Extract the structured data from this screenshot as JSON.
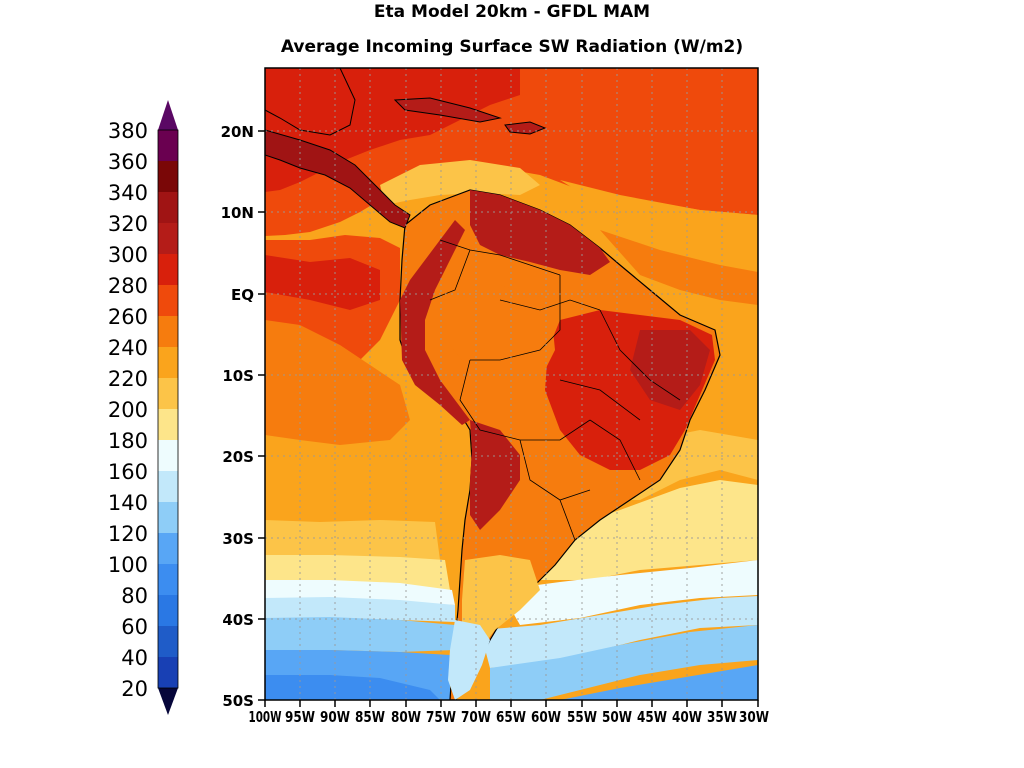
{
  "title": {
    "line1": "Eta Model 20km - GFDL MAM",
    "line2": "Average Incoming Surface SW Radiation (W/m2)"
  },
  "colorbar": {
    "levels": [
      20,
      40,
      60,
      80,
      100,
      120,
      140,
      160,
      180,
      200,
      220,
      240,
      260,
      280,
      300,
      320,
      340,
      360,
      380
    ],
    "colors": [
      "#0a1a55",
      "#0e2a8e",
      "#1840b4",
      "#1f5cc8",
      "#2a78e4",
      "#3c8df0",
      "#58a6f5",
      "#8ecdf7",
      "#c2e8fa",
      "#eefcfe",
      "#fde58a",
      "#fcc448",
      "#faa41c",
      "#f67c0e",
      "#ef4a0c",
      "#d8200c",
      "#b41c18",
      "#a01414",
      "#7a0707",
      "#6a0050"
    ],
    "under_color": "#06063a",
    "over_color": "#5a0864"
  },
  "map": {
    "lon_ticks": [
      "100W",
      "95W",
      "90W",
      "85W",
      "80W",
      "75W",
      "70W",
      "65W",
      "60W",
      "55W",
      "50W",
      "45W",
      "40W",
      "35W",
      "30W"
    ],
    "lat_ticks": [
      "20N",
      "10N",
      "EQ",
      "10S",
      "20S",
      "30S",
      "40S",
      "50S"
    ],
    "lat_values": [
      20,
      10,
      0,
      -10,
      -20,
      -30,
      -40,
      -50
    ],
    "lon_range": [
      -100,
      -30
    ],
    "lat_range": [
      -50,
      28
    ]
  }
}
